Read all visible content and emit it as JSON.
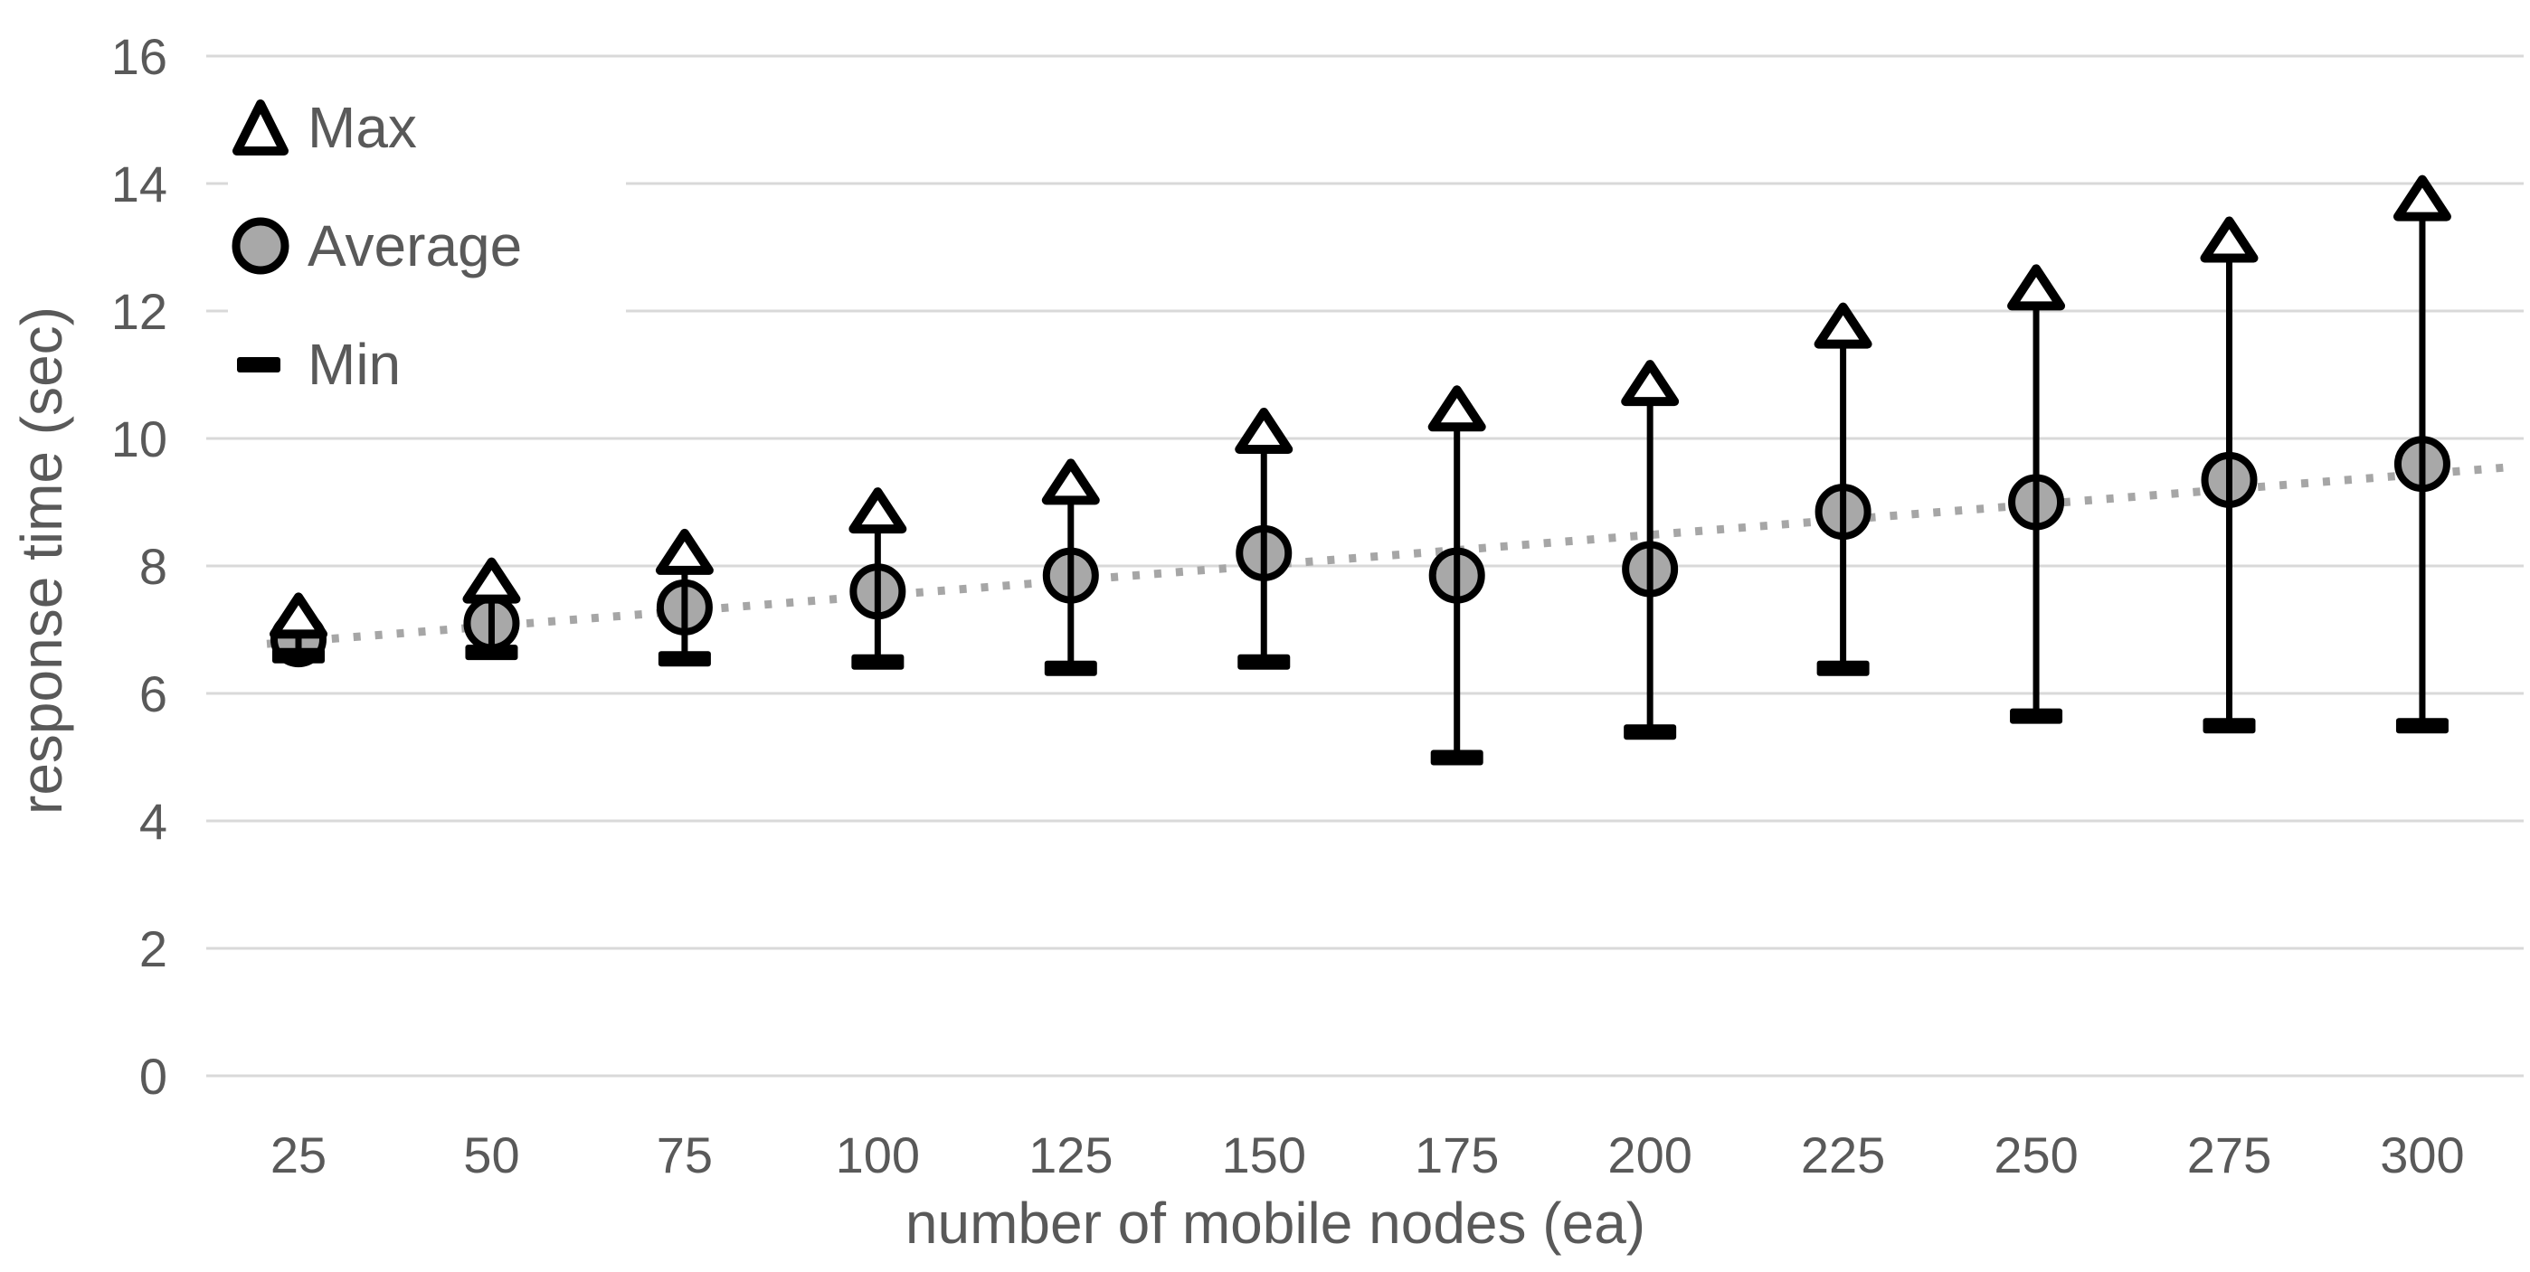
{
  "chart_data": {
    "type": "scatter",
    "title": "",
    "xlabel": "number of mobile nodes (ea)",
    "ylabel": "response time (sec)",
    "categories": [
      25,
      50,
      75,
      100,
      125,
      150,
      175,
      200,
      225,
      250,
      275,
      300
    ],
    "series": [
      {
        "name": "Max",
        "marker": "triangle",
        "values": [
          7.2,
          7.75,
          8.2,
          8.85,
          9.3,
          10.1,
          10.45,
          10.85,
          11.75,
          12.35,
          13.1,
          13.75
        ]
      },
      {
        "name": "Average",
        "marker": "circle",
        "values": [
          6.85,
          7.1,
          7.35,
          7.6,
          7.85,
          8.2,
          7.85,
          7.95,
          8.85,
          9.0,
          9.35,
          9.6
        ]
      },
      {
        "name": "Min",
        "marker": "dash",
        "values": [
          6.6,
          6.65,
          6.55,
          6.5,
          6.4,
          6.5,
          5.0,
          5.4,
          6.4,
          5.65,
          5.5,
          5.5
        ]
      }
    ],
    "ylim": [
      0,
      16
    ],
    "yticks": [
      0,
      2,
      4,
      6,
      8,
      10,
      12,
      14,
      16
    ],
    "grid": true,
    "legend_position": "top-left",
    "error_bars": {
      "from": "Min",
      "to": "Max"
    },
    "trendline": {
      "on": "Average",
      "style": "dotted"
    }
  },
  "colors": {
    "text": "#595959",
    "gridline": "#d9d9d9",
    "marker_stroke": "#000000",
    "marker_fill": "#a8a8a8",
    "trend_dots": "#a6a6a6",
    "background": "#ffffff"
  }
}
